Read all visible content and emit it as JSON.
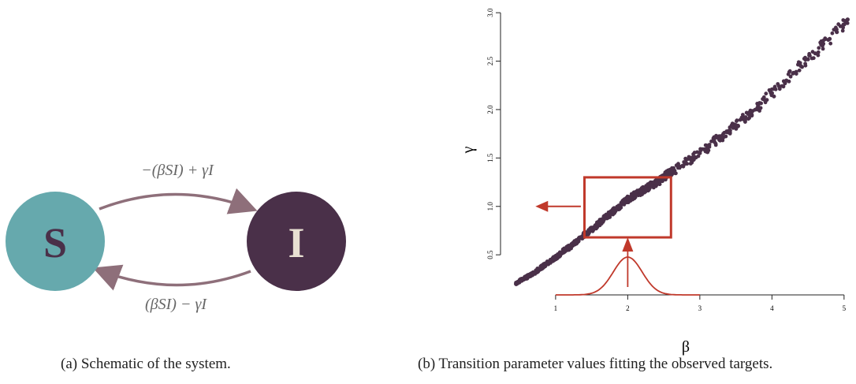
{
  "figure": {
    "panel_a": {
      "caption": "(a) Schematic of the system.",
      "node_s": {
        "label": "S",
        "color": "#66a9ad",
        "text_color": "#4a3049"
      },
      "node_i": {
        "label": "I",
        "color": "#4a3049",
        "text_color": "#e8e0d2"
      },
      "arrow_top_label": "−(βSI) + γI",
      "arrow_bottom_label": "(βSI) − γI",
      "arrow_color": "#8e6f7a"
    },
    "panel_b": {
      "caption": "(b) Transition parameter values fitting the observed targets.",
      "highlight_color": "#c0392b"
    }
  },
  "chart_data": {
    "type": "scatter",
    "xlabel": "β",
    "ylabel": "γ",
    "xticks": [
      "1",
      "2",
      "3",
      "4",
      "5"
    ],
    "yticks": [
      "0.5",
      "1.0",
      "1.5",
      "2.0",
      "2.5",
      "3.0"
    ],
    "xlim": [
      0.4,
      5.1
    ],
    "ylim": [
      0.2,
      3.05
    ],
    "point_color": "#4a3049",
    "series": [
      {
        "values": [
          [
            0.45,
            0.2
          ],
          [
            0.52,
            0.24
          ],
          [
            0.6,
            0.27
          ],
          [
            0.68,
            0.3
          ],
          [
            0.75,
            0.34
          ],
          [
            0.82,
            0.38
          ],
          [
            0.9,
            0.42
          ],
          [
            0.98,
            0.46
          ],
          [
            1.05,
            0.5
          ],
          [
            1.12,
            0.55
          ],
          [
            1.2,
            0.58
          ],
          [
            1.28,
            0.63
          ],
          [
            1.35,
            0.68
          ],
          [
            1.42,
            0.72
          ],
          [
            1.5,
            0.76
          ],
          [
            1.58,
            0.81
          ],
          [
            1.65,
            0.86
          ],
          [
            1.72,
            0.9
          ],
          [
            1.8,
            0.95
          ],
          [
            1.88,
            1.0
          ],
          [
            1.95,
            1.05
          ],
          [
            2.02,
            1.08
          ],
          [
            2.1,
            1.12
          ],
          [
            2.18,
            1.15
          ],
          [
            2.25,
            1.18
          ],
          [
            2.32,
            1.22
          ],
          [
            2.4,
            1.24
          ],
          [
            2.48,
            1.29
          ],
          [
            2.55,
            1.33
          ],
          [
            2.62,
            1.36
          ],
          [
            2.7,
            1.4
          ],
          [
            2.8,
            1.45
          ],
          [
            2.9,
            1.5
          ],
          [
            3.0,
            1.55
          ],
          [
            3.1,
            1.6
          ],
          [
            3.2,
            1.67
          ],
          [
            3.3,
            1.72
          ],
          [
            3.4,
            1.78
          ],
          [
            3.5,
            1.84
          ],
          [
            3.6,
            1.9
          ],
          [
            3.7,
            1.96
          ],
          [
            3.8,
            2.02
          ],
          [
            3.9,
            2.1
          ],
          [
            4.0,
            2.17
          ],
          [
            4.1,
            2.24
          ],
          [
            4.2,
            2.3
          ],
          [
            4.3,
            2.38
          ],
          [
            4.4,
            2.45
          ],
          [
            4.5,
            2.52
          ],
          [
            4.6,
            2.58
          ],
          [
            4.7,
            2.66
          ],
          [
            4.8,
            2.73
          ],
          [
            4.9,
            2.8
          ],
          [
            5.0,
            2.88
          ],
          [
            5.05,
            2.93
          ]
        ]
      }
    ],
    "highlight_box": {
      "x_range": [
        1.4,
        2.6
      ],
      "y_range": [
        0.68,
        1.3
      ]
    },
    "prior_curve": {
      "type": "normal",
      "mean": 2.0,
      "sd": 0.2
    }
  }
}
